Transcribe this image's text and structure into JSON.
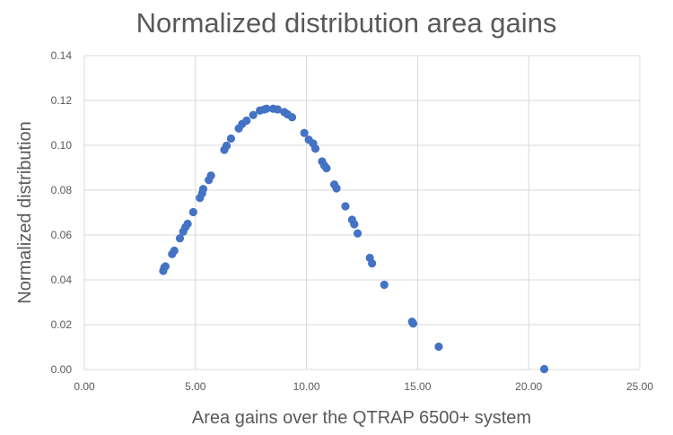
{
  "chart_data": {
    "type": "scatter",
    "title": "Normalized distribution area gains",
    "xlabel": "Area gains over the QTRAP 6500+ system",
    "ylabel": "Normalized distribution",
    "xlim": [
      0,
      25
    ],
    "ylim": [
      0,
      0.14
    ],
    "xticks": [
      "0.00",
      "5.00",
      "10.00",
      "15.00",
      "20.00",
      "25.00"
    ],
    "yticks": [
      "0.00",
      "0.02",
      "0.04",
      "0.06",
      "0.08",
      "0.10",
      "0.12",
      "0.14"
    ],
    "grid": true,
    "legend": "none",
    "colors": {
      "marker": "#4472c4",
      "grid": "#d9d9d9",
      "text": "#595959"
    },
    "series": [
      {
        "name": "Normalized distribution",
        "points": [
          [
            3.55,
            0.044
          ],
          [
            3.6,
            0.0455
          ],
          [
            3.65,
            0.046
          ],
          [
            3.95,
            0.0515
          ],
          [
            4.05,
            0.053
          ],
          [
            4.3,
            0.0585
          ],
          [
            4.45,
            0.0615
          ],
          [
            4.55,
            0.0635
          ],
          [
            4.65,
            0.065
          ],
          [
            4.9,
            0.0702
          ],
          [
            5.2,
            0.0765
          ],
          [
            5.3,
            0.0785
          ],
          [
            5.35,
            0.0805
          ],
          [
            5.6,
            0.0845
          ],
          [
            5.7,
            0.0865
          ],
          [
            6.3,
            0.098
          ],
          [
            6.4,
            0.0998
          ],
          [
            6.6,
            0.103
          ],
          [
            6.95,
            0.1075
          ],
          [
            7.1,
            0.1095
          ],
          [
            7.3,
            0.111
          ],
          [
            7.6,
            0.1135
          ],
          [
            7.9,
            0.1155
          ],
          [
            8.1,
            0.116
          ],
          [
            8.2,
            0.1163
          ],
          [
            8.5,
            0.1163
          ],
          [
            8.7,
            0.116
          ],
          [
            9.0,
            0.1148
          ],
          [
            9.15,
            0.1138
          ],
          [
            9.35,
            0.1125
          ],
          [
            9.9,
            0.1055
          ],
          [
            10.1,
            0.1025
          ],
          [
            10.3,
            0.1008
          ],
          [
            10.4,
            0.0985
          ],
          [
            10.7,
            0.0928
          ],
          [
            10.8,
            0.091
          ],
          [
            10.9,
            0.0898
          ],
          [
            11.25,
            0.0825
          ],
          [
            11.35,
            0.0808
          ],
          [
            11.75,
            0.0728
          ],
          [
            12.05,
            0.0668
          ],
          [
            12.15,
            0.0648
          ],
          [
            12.3,
            0.0607
          ],
          [
            12.85,
            0.0498
          ],
          [
            12.95,
            0.0473
          ],
          [
            13.5,
            0.0378
          ],
          [
            14.75,
            0.0213
          ],
          [
            14.8,
            0.0205
          ],
          [
            15.95,
            0.0102
          ],
          [
            20.7,
            0.0002
          ]
        ]
      }
    ]
  }
}
